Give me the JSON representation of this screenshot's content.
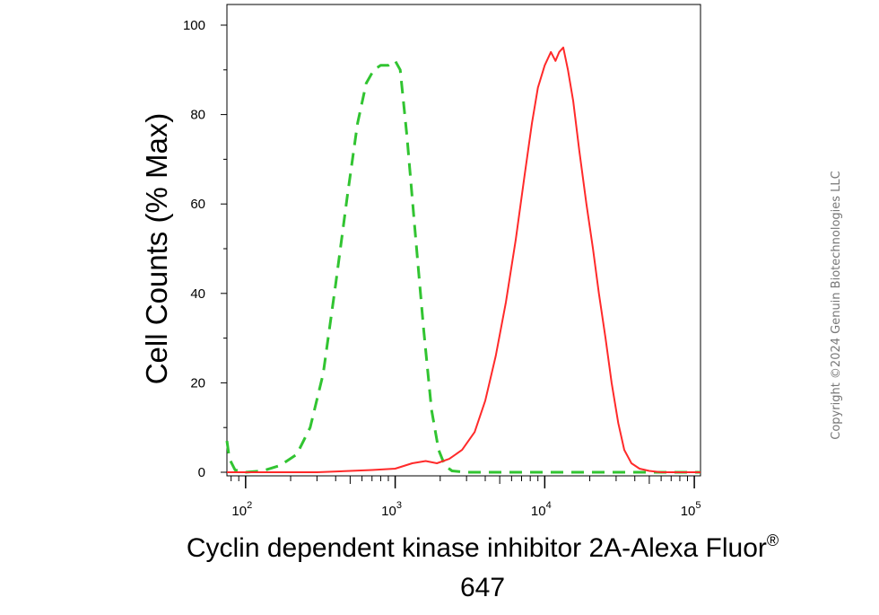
{
  "chart_data": {
    "type": "line",
    "ylabel": "Cell Counts (% Max)",
    "xlabel_line1": "Cyclin dependent kinase inhibitor 2A-Alexa Fluor",
    "xlabel_mark": "®",
    "xlabel_line2": "647",
    "xscale": "log",
    "xlim": [
      75,
      110000
    ],
    "ylim": [
      0,
      100
    ],
    "yticks": [
      {
        "value": 0,
        "label": "0"
      },
      {
        "value": 20,
        "label": "20"
      },
      {
        "value": 40,
        "label": "40"
      },
      {
        "value": 60,
        "label": "60"
      },
      {
        "value": 80,
        "label": "80"
      },
      {
        "value": 100,
        "label": "100"
      }
    ],
    "xticks": [
      {
        "value": 100,
        "base": "10",
        "exp": "2"
      },
      {
        "value": 1000,
        "base": "10",
        "exp": "3"
      },
      {
        "value": 10000,
        "base": "10",
        "exp": "4"
      },
      {
        "value": 100000,
        "base": "10",
        "exp": "5"
      }
    ],
    "grid": false,
    "legend": "none",
    "series": [
      {
        "color": "#31c431",
        "style": "dashed",
        "points": [
          [
            75,
            7
          ],
          [
            78,
            3
          ],
          [
            85,
            0.5
          ],
          [
            100,
            0
          ],
          [
            130,
            0.3
          ],
          [
            170,
            1.5
          ],
          [
            220,
            4
          ],
          [
            270,
            10
          ],
          [
            330,
            22
          ],
          [
            400,
            42
          ],
          [
            480,
            62
          ],
          [
            560,
            78
          ],
          [
            640,
            87
          ],
          [
            720,
            90
          ],
          [
            800,
            91
          ],
          [
            900,
            91
          ],
          [
            1000,
            92
          ],
          [
            1080,
            90
          ],
          [
            1200,
            75
          ],
          [
            1350,
            55
          ],
          [
            1550,
            32
          ],
          [
            1750,
            14
          ],
          [
            1950,
            5
          ],
          [
            2150,
            1.5
          ],
          [
            2400,
            0.3
          ],
          [
            3000,
            0
          ],
          [
            110000,
            0
          ]
        ]
      },
      {
        "color": "#ff2a2a",
        "style": "solid",
        "points": [
          [
            75,
            0
          ],
          [
            300,
            0
          ],
          [
            500,
            0.3
          ],
          [
            700,
            0.5
          ],
          [
            1000,
            0.8
          ],
          [
            1300,
            2
          ],
          [
            1600,
            2.5
          ],
          [
            1900,
            2
          ],
          [
            2300,
            3
          ],
          [
            2800,
            5
          ],
          [
            3400,
            9
          ],
          [
            4000,
            16
          ],
          [
            4700,
            26
          ],
          [
            5500,
            38
          ],
          [
            6400,
            52
          ],
          [
            7300,
            66
          ],
          [
            8200,
            78
          ],
          [
            9000,
            86
          ],
          [
            10000,
            91
          ],
          [
            11000,
            94
          ],
          [
            11800,
            92
          ],
          [
            12500,
            94
          ],
          [
            13300,
            95
          ],
          [
            14300,
            90
          ],
          [
            15500,
            83
          ],
          [
            17000,
            72
          ],
          [
            19000,
            60
          ],
          [
            21000,
            50
          ],
          [
            23000,
            40
          ],
          [
            25500,
            30
          ],
          [
            28000,
            20
          ],
          [
            31000,
            11
          ],
          [
            34000,
            5
          ],
          [
            38000,
            2
          ],
          [
            43000,
            0.8
          ],
          [
            50000,
            0.3
          ],
          [
            60000,
            0
          ],
          [
            110000,
            0
          ]
        ]
      }
    ]
  },
  "copyright": "Copyright ©2024 Genuin Biotechnologies LLC"
}
